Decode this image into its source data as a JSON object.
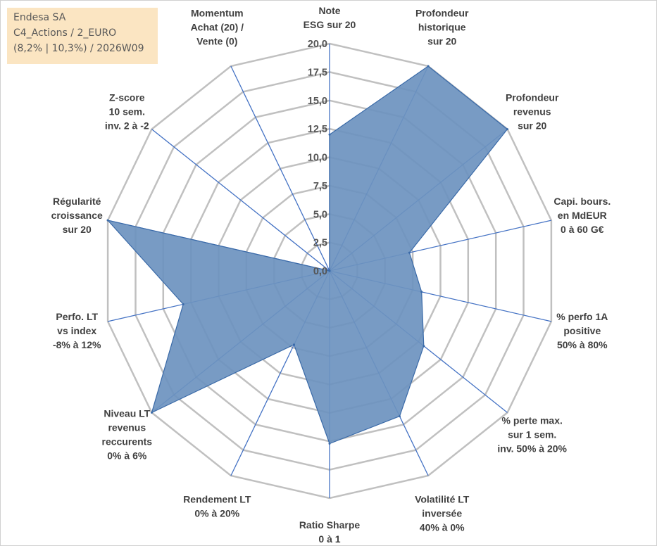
{
  "info_box": {
    "line1": "Endesa SA",
    "line2": "C4_Actions / 2_EURO",
    "line3": "(8,2% | 10,3%) / 2026W09"
  },
  "colors": {
    "fill": "#6d93bf",
    "stroke": "#3a6aa8",
    "grid": "#c0c0c0",
    "spoke": "#4472c4",
    "info_bg": "#fbe5c2"
  },
  "chart_data": {
    "type": "radar",
    "title": "",
    "rmin": 0,
    "rmax": 20,
    "ticks": [
      "0,0",
      "2,5",
      "5,0",
      "7,5",
      "10,0",
      "12,5",
      "15,0",
      "17,5",
      "20,0"
    ],
    "axes": [
      {
        "label": [
          "Note",
          "ESG sur 20"
        ],
        "value": 12.0
      },
      {
        "label": [
          "Profondeur",
          "historique",
          "sur 20"
        ],
        "value": 20.0
      },
      {
        "label": [
          "Profondeur",
          "revenus",
          "sur 20"
        ],
        "value": 20.0
      },
      {
        "label": [
          "Capi. bours.",
          "en MdEUR",
          "0 à 60 G€"
        ],
        "value": 7.2
      },
      {
        "label": [
          "% perfo 1A",
          "positive",
          "50% à 80%"
        ],
        "value": 8.3
      },
      {
        "label": [
          "% perte max.",
          "sur 1 sem.",
          "inv. 50% à 20%"
        ],
        "value": 10.6
      },
      {
        "label": [
          "Volatilité LT",
          "inversée",
          "40% à 0%"
        ],
        "value": 14.2
      },
      {
        "label": [
          "Ratio Sharpe",
          "0 à 1"
        ],
        "value": 15.2
      },
      {
        "label": [
          "Rendement LT",
          "0% à 20%"
        ],
        "value": 7.2
      },
      {
        "label": [
          "Niveau LT",
          "revenus",
          "reccurents",
          "0% à 6%"
        ],
        "value": 20.0
      },
      {
        "label": [
          "Perfo. LT",
          "vs index",
          "-8% à 12%"
        ],
        "value": 13.2
      },
      {
        "label": [
          "Régularité",
          "croissance",
          "sur 20"
        ],
        "value": 20.0
      },
      {
        "label": [
          "Z-score",
          "10 sem.",
          "inv. 2 à -2"
        ],
        "value": 0.0
      },
      {
        "label": [
          "Momentum",
          "Achat (20) /",
          "Vente (0)"
        ],
        "value": 0.0
      }
    ]
  }
}
